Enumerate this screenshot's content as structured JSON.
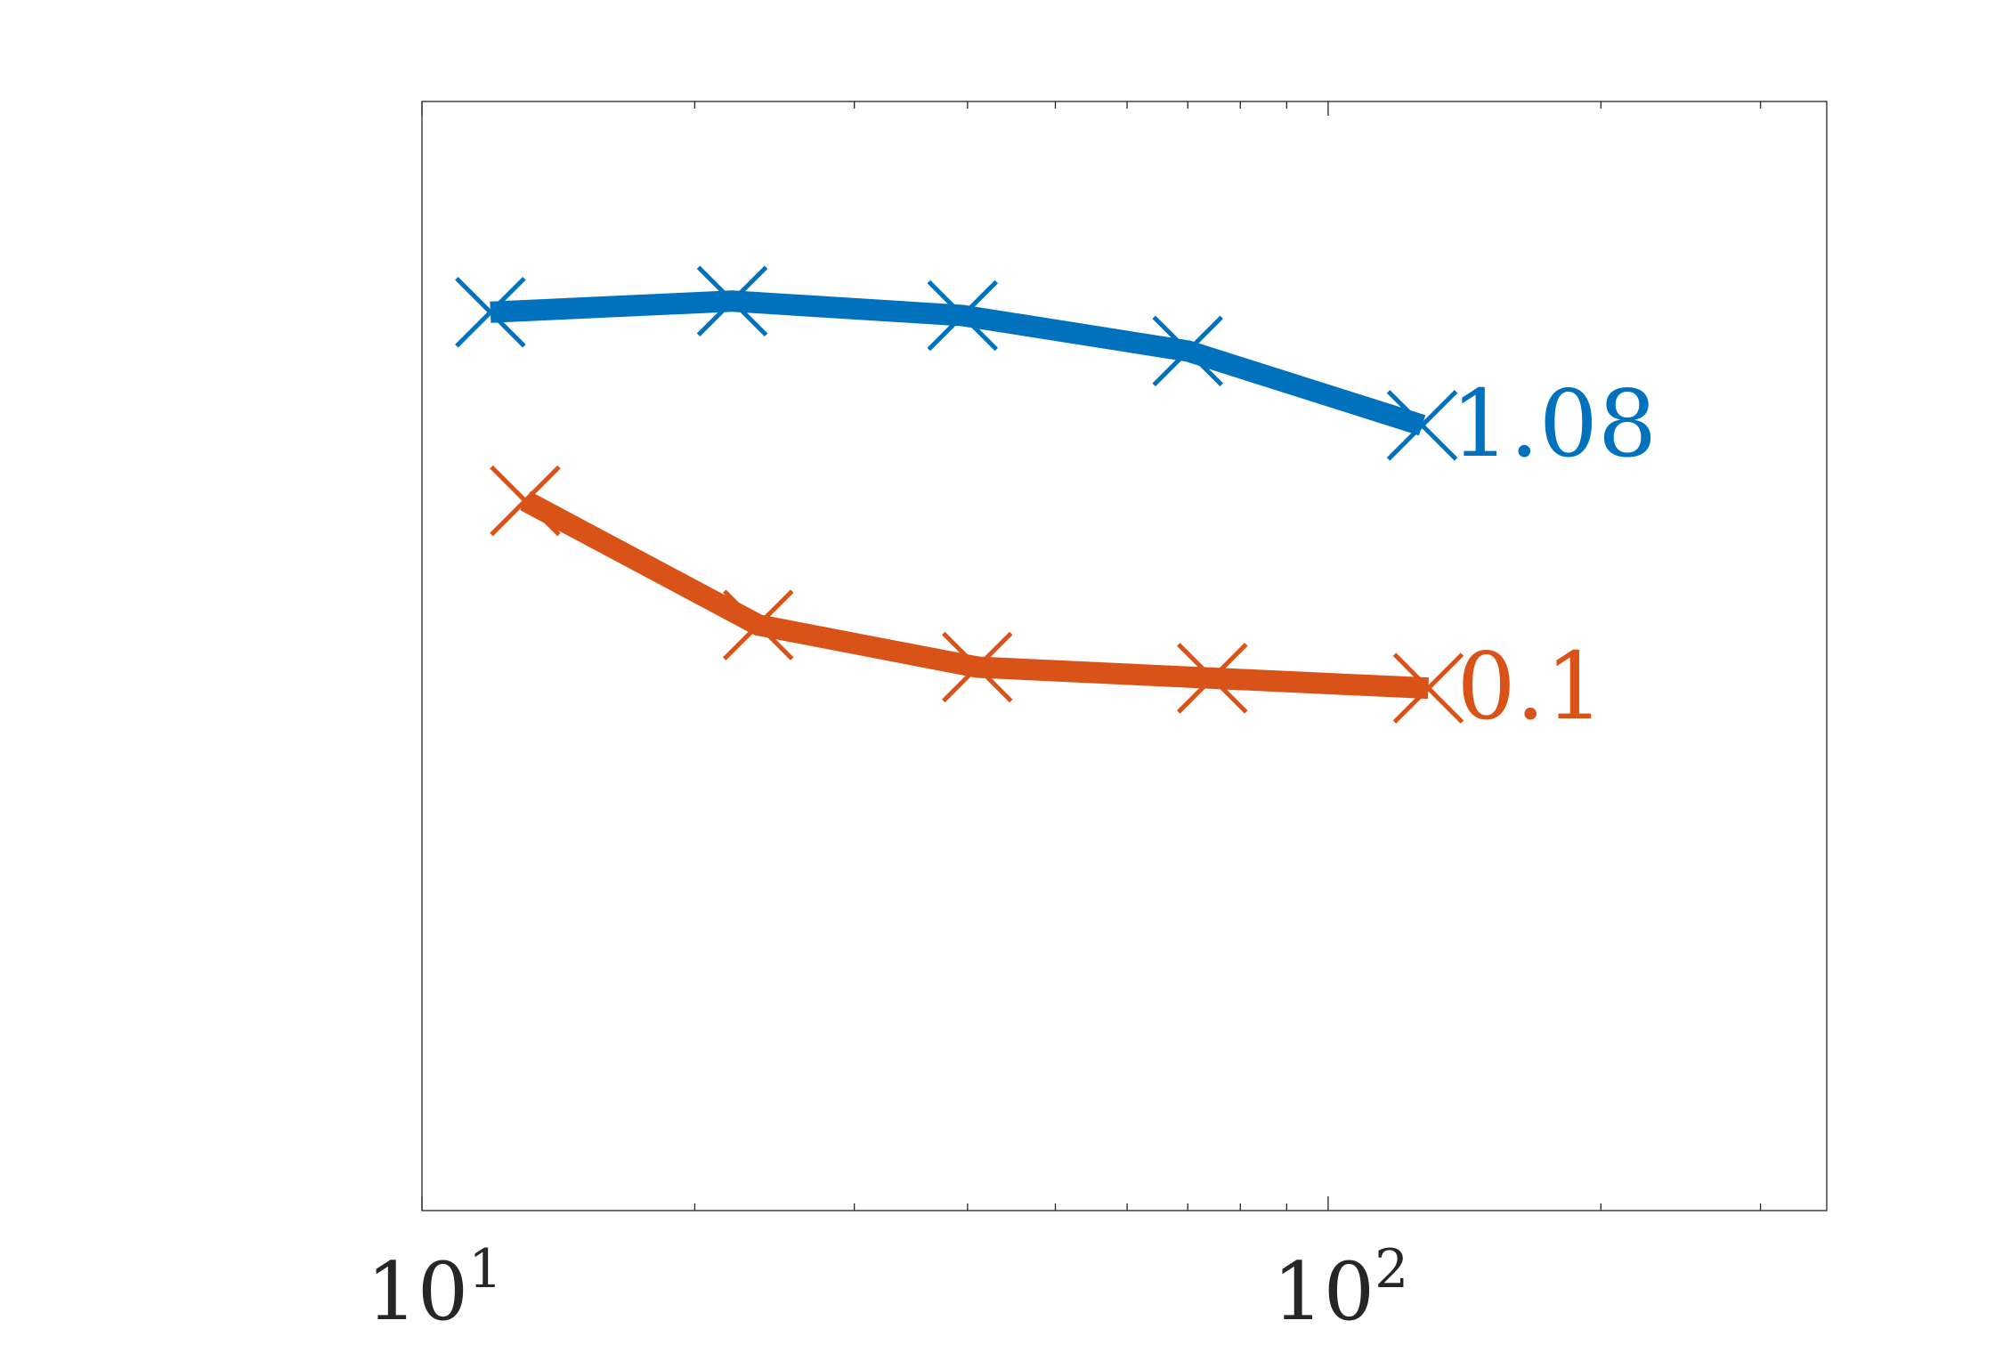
{
  "chart_data": {
    "type": "line",
    "title": "",
    "xlabel": "",
    "ylabel": "",
    "xscale": "log",
    "xlim": [
      10,
      355
    ],
    "ylim": [
      0,
      1
    ],
    "grid": false,
    "legend": "none",
    "x_ticks": [
      {
        "value": 10,
        "base": "10",
        "exponent": "1"
      },
      {
        "value": 100,
        "base": "10",
        "exponent": "2"
      }
    ],
    "series": [
      {
        "color": "#0072BD",
        "x": [
          11.9,
          22.0,
          39.5,
          70.0,
          127.0
        ],
        "y": [
          0.81,
          0.82,
          0.807,
          0.775,
          0.708
        ],
        "end_label": "1.08"
      },
      {
        "color": "#D95319",
        "x": [
          13.0,
          23.5,
          41.0,
          74.5,
          129.0
        ],
        "y": [
          0.64,
          0.528,
          0.49,
          0.48,
          0.471
        ],
        "end_label": "0.1"
      }
    ]
  }
}
